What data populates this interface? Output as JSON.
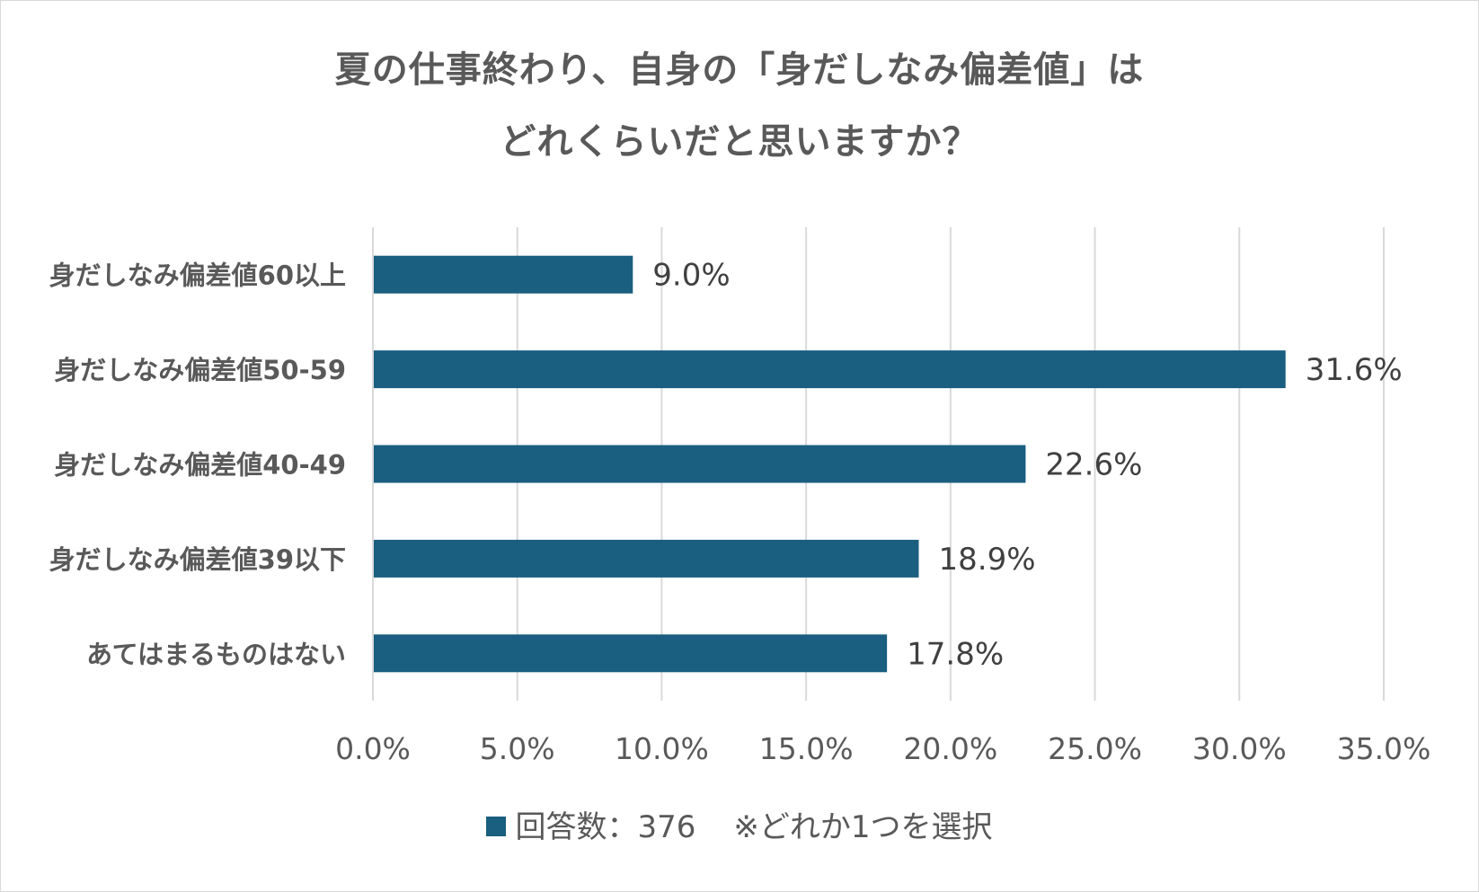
{
  "chart_data": {
    "type": "bar",
    "orientation": "horizontal",
    "title_lines": [
      "夏の仕事終わり、自身の「身だしなみ偏差値」は",
      "どれくらいだと思いますか？"
    ],
    "categories": [
      "身だしなみ偏差値60以上",
      "身だしなみ偏差値50-59",
      "身だしなみ偏差値40-49",
      "身だしなみ偏差値39以下",
      "あてはまるものはない"
    ],
    "series": [
      {
        "name": "回答数：376",
        "values": [
          9.0,
          31.6,
          22.6,
          18.9,
          17.8
        ],
        "data_labels": [
          "9.0%",
          "31.6%",
          "22.6%",
          "18.9%",
          "17.8%"
        ],
        "color": "#1a5e80"
      }
    ],
    "xlim": [
      0,
      35
    ],
    "x_ticks": [
      0,
      5,
      10,
      15,
      20,
      25,
      30,
      35
    ],
    "x_tick_labels": [
      "0.0%",
      "5.0%",
      "10.0%",
      "15.0%",
      "20.0%",
      "25.0%",
      "30.0%",
      "35.0%"
    ],
    "grid": true,
    "legend_position": "bottom",
    "note": "※どれか1つを選択"
  },
  "colors": {
    "bar": "#1a5e80",
    "grid": "#d9d9d9",
    "text": "#595959",
    "data_label": "#404040"
  }
}
